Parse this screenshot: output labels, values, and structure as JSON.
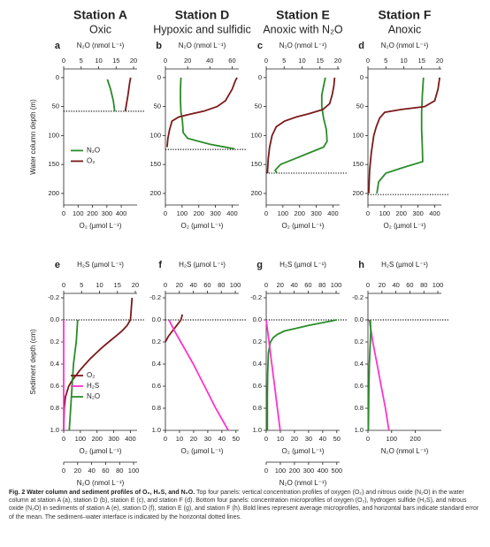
{
  "chart_data": [
    {
      "type": "line",
      "letter": "a",
      "header": "Station A",
      "subheader": "Oxic",
      "ylabel": "Water column depth (m)",
      "ylim": [
        -15,
        220
      ],
      "yticks": [
        0,
        50,
        100,
        150,
        200
      ],
      "legend": "left",
      "interface": 58,
      "axes": {
        "top": {
          "label": "N₂O (nmol L⁻¹)",
          "xlim": [
            0,
            21
          ],
          "xticks": [
            0,
            5,
            10,
            15,
            20
          ]
        },
        "bottom": {
          "label": "O₂ (µmol L⁻¹)",
          "xlim": [
            0,
            510
          ],
          "xticks": [
            0,
            100,
            200,
            300,
            400
          ]
        }
      },
      "series": [
        {
          "name": "N₂O",
          "color": "#2a8c2a",
          "axis": "top",
          "depth": [
            3,
            20,
            40,
            58
          ],
          "values": [
            12.5,
            13.4,
            14.2,
            14.6
          ]
        },
        {
          "name": "O₂",
          "color": "#7b1a1a",
          "axis": "bottom",
          "depth": [
            0,
            10,
            20,
            30,
            40,
            50,
            58
          ],
          "values": [
            465,
            458,
            452,
            447,
            440,
            433,
            428
          ]
        }
      ]
    },
    {
      "type": "line",
      "letter": "b",
      "header": "Station D",
      "subheader": "Hypoxic and sulfidic",
      "ylim": [
        -15,
        220
      ],
      "yticks": [
        0,
        50,
        100,
        150,
        200
      ],
      "interface": 124,
      "axes": {
        "top": {
          "label": "N₂O (nmol L⁻¹)",
          "xlim": [
            0,
            66
          ],
          "xticks": [
            0,
            20,
            40,
            60
          ]
        },
        "bottom": {
          "label": "O₂ (µmol L⁻¹)",
          "xlim": [
            0,
            440
          ],
          "xticks": [
            0,
            100,
            200,
            300,
            400
          ]
        }
      },
      "series": [
        {
          "name": "N₂O",
          "color": "#2a8c2a",
          "axis": "top",
          "depth": [
            0,
            20,
            40,
            60,
            70,
            80,
            95,
            105,
            115,
            123
          ],
          "values": [
            14,
            13.5,
            13.5,
            14,
            15,
            15.5,
            16,
            20,
            40,
            62
          ]
        },
        {
          "name": "O₂",
          "color": "#7b1a1a",
          "axis": "bottom",
          "depth": [
            0,
            5,
            20,
            40,
            50,
            58,
            63,
            68,
            75,
            90,
            105,
            120
          ],
          "values": [
            430,
            420,
            400,
            360,
            310,
            230,
            150,
            80,
            40,
            25,
            15,
            10
          ]
        }
      ]
    },
    {
      "type": "line",
      "letter": "c",
      "header": "Station E",
      "subheader": "Anoxic with N₂O",
      "ylim": [
        -15,
        220
      ],
      "yticks": [
        0,
        50,
        100,
        150,
        200
      ],
      "interface": 165,
      "axes": {
        "top": {
          "label": "N₂O (nmol L⁻¹)",
          "xlim": [
            0,
            20.5
          ],
          "xticks": [
            0,
            5,
            10,
            15,
            20
          ]
        },
        "bottom": {
          "label": "O₂ (µmol L⁻¹)",
          "xlim": [
            0,
            440
          ],
          "xticks": [
            0,
            100,
            200,
            300,
            400
          ]
        }
      },
      "series": [
        {
          "name": "N₂O",
          "color": "#2a8c2a",
          "axis": "top",
          "depth": [
            0,
            15,
            30,
            50,
            70,
            90,
            110,
            120,
            130,
            140,
            150,
            160,
            165
          ],
          "values": [
            16.5,
            16,
            15.5,
            15.5,
            16,
            16.8,
            17,
            16,
            12,
            8,
            4,
            2.5,
            3
          ]
        },
        {
          "name": "O₂",
          "color": "#7b1a1a",
          "axis": "bottom",
          "depth": [
            0,
            15,
            30,
            45,
            55,
            62,
            68,
            75,
            85,
            100,
            120,
            140,
            160,
            165
          ],
          "values": [
            410,
            405,
            395,
            380,
            340,
            260,
            180,
            110,
            60,
            35,
            20,
            12,
            8,
            8
          ]
        }
      ]
    },
    {
      "type": "line",
      "letter": "d",
      "header": "Station F",
      "subheader": "Anoxic",
      "ylim": [
        -15,
        220
      ],
      "yticks": [
        0,
        50,
        100,
        150,
        200
      ],
      "interface": 202,
      "axes": {
        "top": {
          "label": "N₂O (nmol L⁻¹)",
          "xlim": [
            0,
            20.5
          ],
          "xticks": [
            0,
            5,
            10,
            15,
            20
          ]
        },
        "bottom": {
          "label": "O₂ (µmol L⁻¹)",
          "xlim": [
            0,
            440
          ],
          "xticks": [
            0,
            100,
            200,
            300,
            400
          ]
        }
      },
      "series": [
        {
          "name": "N₂O",
          "color": "#2a8c2a",
          "axis": "top",
          "depth": [
            0,
            30,
            60,
            90,
            120,
            145,
            155,
            165,
            180,
            200
          ],
          "values": [
            15.5,
            15.2,
            15,
            15,
            15.2,
            15.3,
            10,
            5,
            3,
            2.5
          ]
        },
        {
          "name": "O₂",
          "color": "#7b1a1a",
          "axis": "bottom",
          "depth": [
            0,
            20,
            40,
            50,
            55,
            60,
            70,
            85,
            100,
            130,
            160,
            200
          ],
          "values": [
            430,
            420,
            400,
            340,
            200,
            100,
            70,
            50,
            35,
            20,
            10,
            5
          ]
        }
      ]
    },
    {
      "type": "line",
      "letter": "e",
      "ylabel": "Sediment depth (cm)",
      "ylim": [
        -0.24,
        1.0
      ],
      "yticks": [
        -0.2,
        {
          "value": 0,
          "label": "0.0"
        },
        0.2,
        0.4,
        0.6,
        0.8,
        {
          "value": 1,
          "label": "1.0"
        }
      ],
      "legend": "left",
      "interface": 0,
      "axes": {
        "top": {
          "label": "H₂S (µmol L⁻¹)",
          "xlim": [
            0,
            20.5
          ],
          "xticks": [
            0,
            5,
            10,
            15,
            20
          ]
        },
        "bottom": {
          "label": "O₂ (µmol L⁻¹)",
          "xlim": [
            0,
            440
          ],
          "xticks": [
            0,
            100,
            200,
            300,
            400
          ]
        },
        "bottom2": {
          "label": "N₂O (nmol L⁻¹)",
          "xlim": [
            0,
            105
          ],
          "xticks": [
            0,
            20,
            40,
            60,
            80,
            100
          ]
        }
      },
      "series": [
        {
          "name": "O₂",
          "color": "#7b1a1a",
          "axis": "bottom",
          "depth": [
            -0.2,
            -0.1,
            0,
            0.05,
            0.1,
            0.15,
            0.2,
            0.25,
            0.3,
            0.35,
            0.4,
            0.45,
            0.5,
            0.55,
            0.6,
            0.7,
            0.8,
            1.0
          ],
          "values": [
            410,
            405,
            400,
            380,
            350,
            310,
            270,
            230,
            195,
            160,
            130,
            100,
            75,
            50,
            30,
            10,
            3,
            0
          ]
        },
        {
          "name": "H₂S",
          "color": "#ff33cc",
          "axis": "top",
          "depth": [
            0,
            0.2,
            0.4,
            0.6,
            0.8,
            1.0
          ],
          "values": [
            0,
            0,
            0,
            0,
            0,
            0
          ]
        },
        {
          "name": "N₂O",
          "color": "#2a8c2a",
          "axis": "bottom2",
          "depth": [
            0,
            0.1,
            0.2,
            0.3,
            0.4,
            0.5,
            0.6,
            0.7,
            0.8,
            0.9,
            1.0
          ],
          "values": [
            20,
            19,
            18,
            16,
            14,
            13,
            12,
            11,
            10,
            9,
            8
          ]
        }
      ]
    },
    {
      "type": "line",
      "letter": "f",
      "ylim": [
        -0.24,
        1.0
      ],
      "yticks": [
        -0.2,
        {
          "value": 0,
          "label": "0.0"
        },
        0.2,
        0.4,
        0.6,
        0.8,
        {
          "value": 1,
          "label": "1.0"
        }
      ],
      "interface": 0,
      "axes": {
        "top": {
          "label": "H₂S (µmol L⁻¹)",
          "xlim": [
            0,
            105
          ],
          "xticks": [
            0,
            20,
            40,
            60,
            80,
            100
          ]
        },
        "bottom": {
          "label": "O₂ (µmol L⁻¹)",
          "xlim": [
            0,
            52
          ],
          "xticks": [
            0,
            10,
            20,
            30,
            40,
            50
          ]
        }
      },
      "series": [
        {
          "name": "O₂",
          "color": "#7b1a1a",
          "axis": "bottom",
          "depth": [
            -0.05,
            0,
            0.05,
            0.1,
            0.15,
            0.2
          ],
          "values": [
            12,
            11,
            8,
            5,
            2,
            0
          ]
        },
        {
          "name": "H₂S",
          "color": "#ff33cc",
          "axis": "top",
          "depth": [
            0,
            0.1,
            0.2,
            0.3,
            0.4,
            0.5,
            0.6,
            0.7,
            0.8,
            0.9,
            1.0
          ],
          "values": [
            5,
            13,
            22,
            31,
            40,
            48,
            56,
            64,
            72,
            81,
            90
          ]
        }
      ]
    },
    {
      "type": "line",
      "letter": "g",
      "ylim": [
        -0.24,
        1.0
      ],
      "yticks": [
        -0.2,
        {
          "value": 0,
          "label": "0.0"
        },
        0.2,
        0.4,
        0.6,
        0.8,
        {
          "value": 1,
          "label": "1.0"
        }
      ],
      "interface": 0,
      "axes": {
        "top": {
          "label": "H₂S (µmol L⁻¹)",
          "xlim": [
            0,
            105
          ],
          "xticks": [
            0,
            20,
            40,
            60,
            80,
            100
          ]
        },
        "bottom": {
          "label": "O₂ (µmol L⁻¹)",
          "xlim": [
            0,
            52
          ],
          "xticks": [
            0,
            10,
            20,
            30,
            40,
            50
          ]
        },
        "bottom2": {
          "label": "N₂O (nmol L⁻¹)",
          "xlim": [
            0,
            520
          ],
          "xticks": [
            0,
            100,
            200,
            300,
            400,
            500
          ]
        }
      },
      "series": [
        {
          "name": "N₂O",
          "color": "#2a8c2a",
          "axis": "bottom2",
          "depth": [
            0,
            0.02,
            0.05,
            0.08,
            0.1,
            0.13,
            0.16,
            0.2,
            0.3,
            0.5,
            0.7,
            1.0
          ],
          "values": [
            500,
            420,
            300,
            200,
            130,
            80,
            50,
            30,
            15,
            10,
            8,
            8
          ]
        },
        {
          "name": "H₂S",
          "color": "#ff33cc",
          "axis": "top",
          "depth": [
            0,
            0.2,
            0.4,
            0.6,
            0.8,
            1.0
          ],
          "values": [
            0,
            4,
            8,
            12,
            16,
            20
          ]
        }
      ]
    },
    {
      "type": "line",
      "letter": "h",
      "ylim": [
        -0.24,
        1.0
      ],
      "yticks": [
        -0.2,
        {
          "value": 0,
          "label": "0.0"
        },
        0.2,
        0.4,
        0.6,
        0.8,
        {
          "value": 1,
          "label": "1.0"
        }
      ],
      "interface": 0,
      "axes": {
        "top": {
          "label": "H₂S (µmol L⁻¹)",
          "xlim": [
            0,
            105
          ],
          "xticks": [
            0,
            20,
            40,
            60,
            80,
            100
          ]
        },
        "bottom": {
          "label": "N₂O (nmol L⁻¹)",
          "xlim": [
            0,
            310
          ],
          "xticks": [
            0,
            100,
            200
          ]
        }
      },
      "series": [
        {
          "name": "H₂S",
          "color": "#ff33cc",
          "axis": "top",
          "depth": [
            0,
            0.2,
            0.4,
            0.6,
            0.8,
            1.0
          ],
          "values": [
            2,
            7,
            13,
            19,
            25,
            30
          ]
        },
        {
          "name": "N₂O",
          "color": "#2a8c2a",
          "axis": "bottom",
          "depth": [
            0,
            0.1,
            0.2,
            0.3,
            0.4,
            0.6,
            0.8,
            1.0
          ],
          "values": [
            10,
            12,
            10,
            8,
            6,
            4,
            3,
            2
          ]
        }
      ]
    }
  ],
  "caption": {
    "title": "Fig. 2 Water column and sediment profiles of O₂, H₂S, and N₂O.",
    "text": "Top four panels: vertical concentration profiles of oxygen (O₂) and nitrous oxide (N₂O) in the water column at station A (a), station D (b), station E (c), and station F (d). Bottom four panels: concentration microprofiles of oxygen (O₂), hydrogen sulfide (H₂S), and nitrous oxide (N₂O) in sediments of station A (e), station D (f), station E (g), and station F (h). Bold lines represent average microprofiles, and horizontal bars indicate standard error of the mean. The sediment–water interface is indicated by the horizontal dotted lines."
  }
}
